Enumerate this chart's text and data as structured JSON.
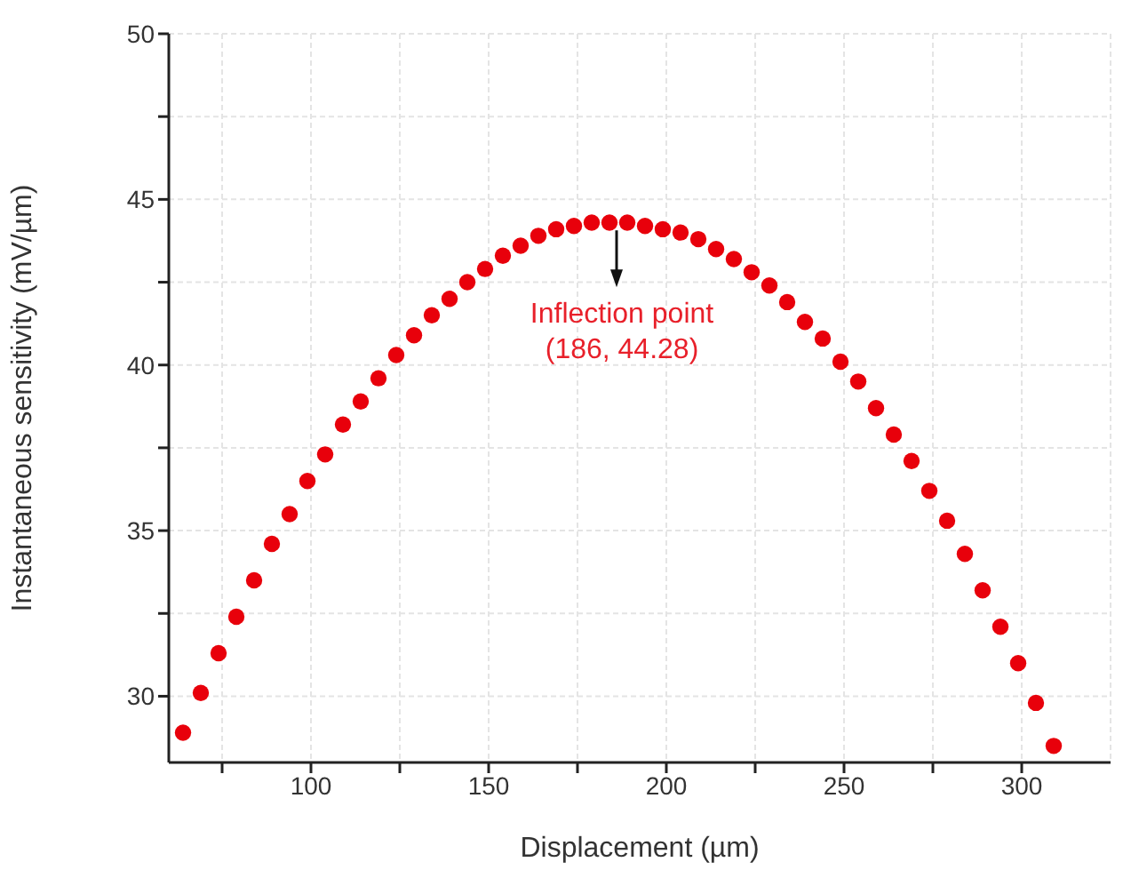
{
  "chart_data": {
    "type": "scatter",
    "xlabel": "Displacement (µm)",
    "ylabel": "Instantaneous sensitivity (mV/µm)",
    "x": [
      64,
      69,
      74,
      79,
      84,
      89,
      94,
      99,
      104,
      109,
      114,
      119,
      124,
      129,
      134,
      139,
      144,
      149,
      154,
      159,
      164,
      169,
      174,
      179,
      184,
      189,
      194,
      199,
      204,
      209,
      214,
      219,
      224,
      229,
      234,
      239,
      244,
      249,
      254,
      259,
      264,
      269,
      274,
      279,
      284,
      289,
      294,
      299,
      304,
      309
    ],
    "series": [
      {
        "color": "#e8000b",
        "values": [
          28.9,
          30.1,
          31.3,
          32.4,
          33.5,
          34.6,
          35.5,
          36.5,
          37.3,
          38.2,
          38.9,
          39.6,
          40.3,
          40.9,
          41.5,
          42.0,
          42.5,
          42.9,
          43.3,
          43.6,
          43.9,
          44.1,
          44.2,
          44.3,
          44.3,
          44.3,
          44.2,
          44.1,
          44.0,
          43.8,
          43.5,
          43.2,
          42.8,
          42.4,
          41.9,
          41.3,
          40.8,
          40.1,
          39.5,
          38.7,
          37.9,
          37.1,
          36.2,
          35.3,
          34.3,
          33.2,
          32.1,
          31.0,
          29.8,
          28.5
        ]
      }
    ],
    "marker": "circle",
    "xlim": [
      60,
      325
    ],
    "xticks": [
      {
        "value": 75,
        "label": null
      },
      100,
      {
        "value": 125,
        "label": null
      },
      150,
      {
        "value": 175,
        "label": null
      },
      200,
      {
        "value": 225,
        "label": null
      },
      250,
      {
        "value": 275,
        "label": null
      },
      300
    ],
    "ylim": [
      28,
      50
    ],
    "yticks": [
      30,
      {
        "value": 32.5,
        "label": null
      },
      35,
      {
        "value": 37.5,
        "label": null
      },
      40,
      {
        "value": 42.5,
        "label": null
      },
      45,
      {
        "value": 47.5,
        "label": null
      },
      50
    ],
    "grid": true,
    "annotations": [
      {
        "text": "Inflection point\n(186, 44.28)",
        "x": 186,
        "y": 44.28
      }
    ]
  }
}
